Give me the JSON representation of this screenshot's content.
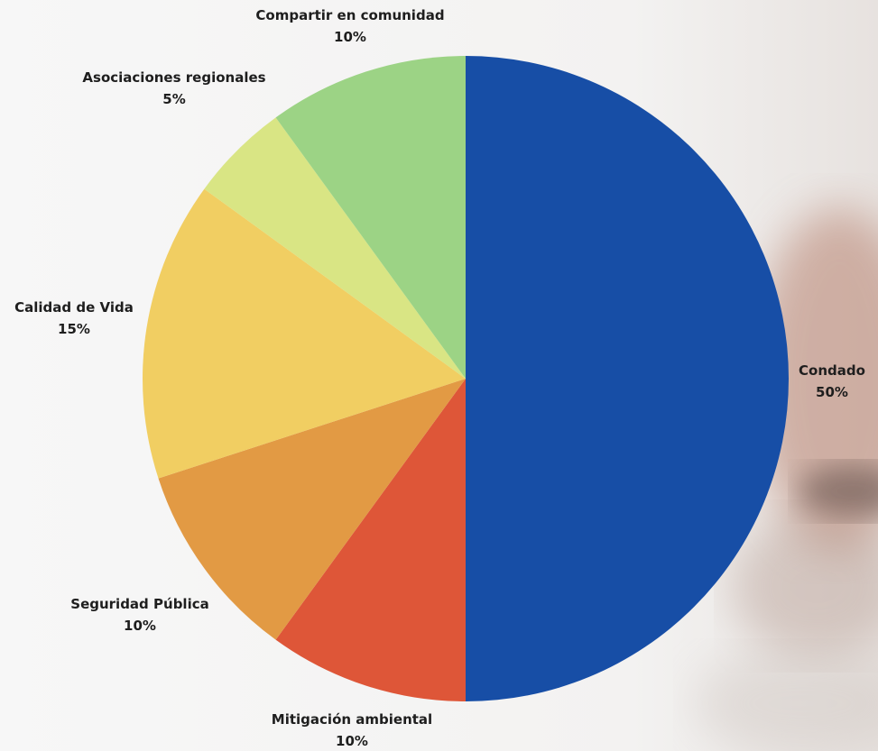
{
  "chart_data": {
    "type": "pie",
    "title": "",
    "slices": [
      {
        "label": "Condado",
        "value": 50,
        "pct_label": "50%",
        "color": "#174EA6"
      },
      {
        "label": "Mitigación ambiental",
        "value": 10,
        "pct_label": "10%",
        "color": "#DE5638"
      },
      {
        "label": "Seguridad Pública",
        "value": 10,
        "pct_label": "10%",
        "color": "#E29A44"
      },
      {
        "label": "Calidad de Vida",
        "value": 15,
        "pct_label": "15%",
        "color": "#F1CE62"
      },
      {
        "label": "Asociaciones regionales",
        "value": 5,
        "pct_label": "5%",
        "color": "#D9E584"
      },
      {
        "label": "Compartir en comunidad",
        "value": 10,
        "pct_label": "10%",
        "color": "#9CD385"
      }
    ],
    "start": "12 o'clock",
    "direction": "clockwise",
    "legend": "none",
    "labels": "outside slices"
  }
}
